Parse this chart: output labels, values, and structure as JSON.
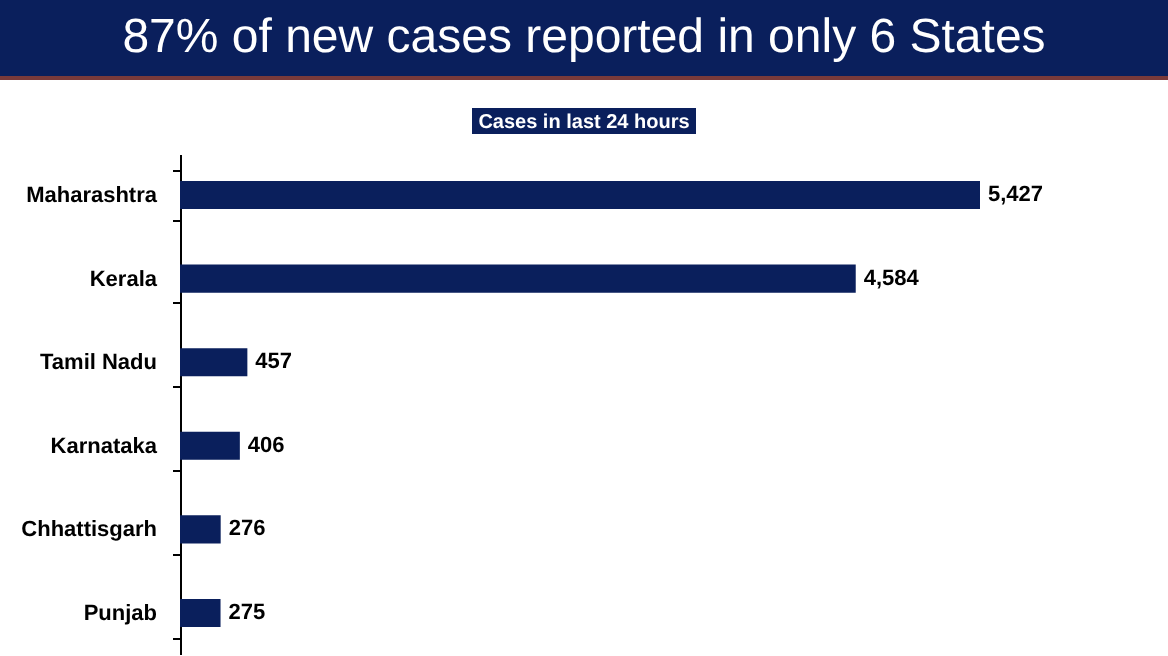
{
  "chart_data": {
    "type": "bar",
    "title": "87% of new cases reported in only 6 States",
    "subtitle": "Cases in last 24 hours",
    "orientation": "horizontal",
    "categories": [
      "Maharashtra",
      "Kerala",
      "Tamil Nadu",
      "Karnataka",
      "Chhattisgarh",
      "Punjab"
    ],
    "values": [
      5427,
      4584,
      457,
      406,
      276,
      275
    ],
    "color": "#0a1f5c",
    "value_labels": [
      "5,427",
      "4,584",
      "457",
      "406",
      "276",
      "275"
    ]
  }
}
